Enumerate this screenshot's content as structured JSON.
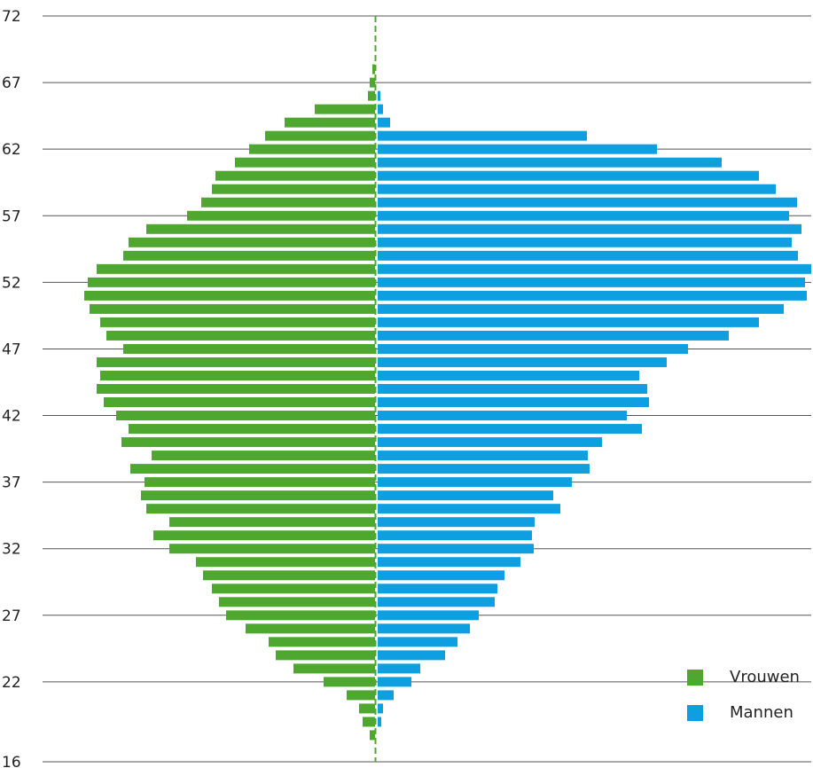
{
  "chart_data": {
    "type": "bar",
    "orientation": "horizontal-pyramid",
    "y_axis": {
      "min": 16,
      "max": 72,
      "tick_labels": [
        "16",
        "22",
        "27",
        "32",
        "37",
        "42",
        "47",
        "52",
        "57",
        "62",
        "67",
        "72"
      ]
    },
    "x_unit_note": "",
    "grid": true,
    "legend_position": "bottom-right",
    "ages": [
      17,
      18,
      19,
      20,
      21,
      22,
      23,
      24,
      25,
      26,
      27,
      28,
      29,
      30,
      31,
      32,
      33,
      34,
      35,
      36,
      37,
      38,
      39,
      40,
      41,
      42,
      43,
      44,
      45,
      46,
      47,
      48,
      49,
      50,
      51,
      52,
      53,
      54,
      55,
      56,
      57,
      58,
      59,
      60,
      61,
      62,
      63,
      64,
      65,
      66,
      67,
      68
    ],
    "series": [
      {
        "name": "Vrouwen",
        "color": "#4ea72e",
        "values": [
          0,
          6,
          14,
          18,
          32,
          58,
          92,
          112,
          120,
          146,
          168,
          176,
          184,
          194,
          202,
          232,
          250,
          232,
          258,
          264,
          260,
          276,
          252,
          286,
          278,
          292,
          306,
          314,
          310,
          314,
          284,
          303,
          310,
          322,
          328,
          324,
          314,
          284,
          278,
          258,
          212,
          196,
          184,
          180,
          158,
          142,
          124,
          102,
          68,
          8,
          6,
          3
        ]
      },
      {
        "name": "Mannen",
        "color": "#0d9fe0",
        "values": [
          0,
          0,
          4,
          6,
          18,
          38,
          48,
          76,
          90,
          104,
          114,
          132,
          135,
          143,
          161,
          176,
          174,
          177,
          206,
          198,
          219,
          239,
          237,
          253,
          298,
          281,
          306,
          304,
          295,
          326,
          350,
          396,
          430,
          458,
          484,
          482,
          489,
          474,
          467,
          478,
          464,
          473,
          449,
          430,
          388,
          315,
          236,
          14,
          6,
          3,
          0,
          0
        ]
      }
    ]
  },
  "legend": {
    "items": [
      {
        "label": "Vrouwen",
        "color": "#4ea72e"
      },
      {
        "label": "Mannen",
        "color": "#0d9fe0"
      }
    ]
  }
}
